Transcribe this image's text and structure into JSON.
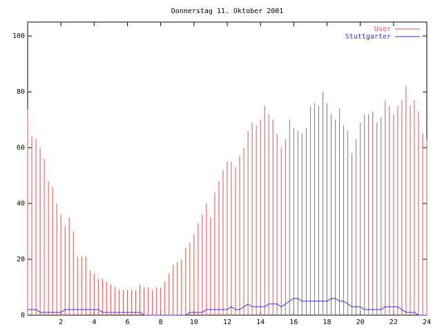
{
  "chart_data": {
    "type": "impulses",
    "title": "Donnerstag 11. Oktober 2001",
    "x": [
      0,
      0.25,
      0.5,
      0.75,
      1,
      1.25,
      1.5,
      1.75,
      2,
      2.25,
      2.5,
      2.75,
      3,
      3.25,
      3.5,
      3.75,
      4,
      4.25,
      4.5,
      4.75,
      5,
      5.25,
      5.5,
      5.75,
      6,
      6.25,
      6.5,
      6.75,
      7,
      7.25,
      7.5,
      7.75,
      8,
      8.25,
      8.5,
      8.75,
      9,
      9.25,
      9.5,
      9.75,
      10,
      10.25,
      10.5,
      10.75,
      11,
      11.25,
      11.5,
      11.75,
      12,
      12.25,
      12.5,
      12.75,
      13,
      13.25,
      13.5,
      13.75,
      14,
      14.25,
      14.5,
      14.75,
      15,
      15.25,
      15.5,
      15.75,
      16,
      16.25,
      16.5,
      16.75,
      17,
      17.25,
      17.5,
      17.75,
      18,
      18.25,
      18.5,
      18.75,
      19,
      19.25,
      19.5,
      19.75,
      20,
      20.25,
      20.5,
      20.75,
      21,
      21.25,
      21.5,
      21.75,
      22,
      22.25,
      22.5,
      22.75,
      23,
      23.25,
      23.5,
      23.75,
      24
    ],
    "series": [
      {
        "name": "User",
        "color": "#e05050",
        "style": "impulses",
        "values": [
          74,
          64,
          63,
          60,
          56,
          48,
          46,
          40,
          36,
          32,
          35,
          30,
          21,
          21,
          21,
          16,
          15,
          13,
          13,
          12,
          11,
          10,
          9,
          9,
          9,
          9,
          9,
          11,
          10,
          10,
          9,
          10,
          10,
          12,
          15,
          18,
          19,
          20,
          24,
          26,
          29,
          33,
          36,
          40,
          35,
          44,
          48,
          52,
          55,
          55,
          53,
          57,
          60,
          66,
          69,
          68,
          70,
          75,
          72,
          70,
          65,
          60,
          63,
          70,
          67,
          66,
          65,
          67,
          75,
          76,
          75,
          80,
          76,
          72,
          70,
          74,
          68,
          66,
          58,
          63,
          69,
          72,
          72,
          73,
          69,
          71,
          77,
          75,
          72,
          75,
          77,
          82,
          75,
          77,
          73,
          65,
          63
        ]
      },
      {
        "name": "Stuttgarter",
        "color": "#3030d0",
        "style": "line",
        "values": [
          2,
          2,
          2,
          1,
          1,
          1,
          1,
          1,
          1,
          2,
          2,
          2,
          2,
          2,
          2,
          2,
          2,
          2,
          1,
          1,
          1,
          1,
          1,
          1,
          1,
          1,
          1,
          1,
          0,
          0,
          0,
          0,
          0,
          0,
          0,
          0,
          0,
          0,
          0,
          1,
          1,
          1,
          1,
          2,
          2,
          2,
          2,
          2,
          2,
          3,
          2,
          2,
          3,
          4,
          3,
          3,
          3,
          3,
          4,
          4,
          4,
          3,
          4,
          5,
          6,
          6,
          5,
          5,
          5,
          5,
          5,
          5,
          5,
          6,
          6,
          5,
          5,
          4,
          3,
          3,
          3,
          2,
          2,
          2,
          2,
          2,
          3,
          3,
          3,
          3,
          2,
          1,
          1,
          1,
          0,
          0,
          0
        ]
      }
    ],
    "xlim": [
      0,
      24
    ],
    "xticks": [
      2,
      4,
      6,
      8,
      10,
      12,
      14,
      16,
      18,
      20,
      22,
      24
    ],
    "ylim": [
      0,
      105
    ],
    "yticks": [
      0,
      20,
      40,
      60,
      80,
      100
    ],
    "legend": "top-right",
    "grid": false
  }
}
